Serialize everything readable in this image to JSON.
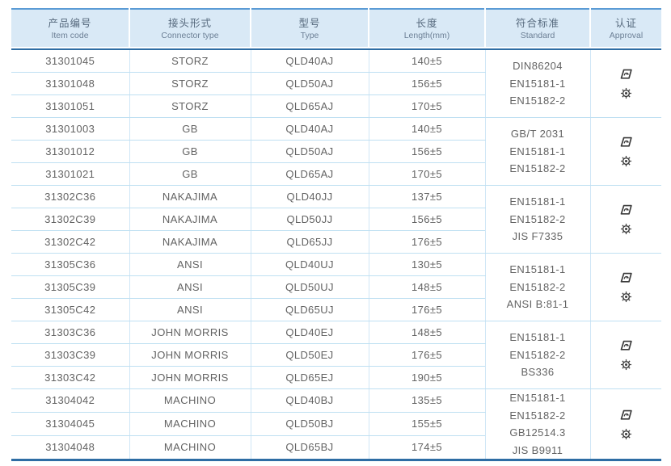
{
  "page": {
    "title": "Product specification table",
    "colors": {
      "header_bg": "#d9e9f6",
      "top_border": "#5b9bd5",
      "heavy_line": "#2e6da4",
      "grid_line": "#bfe0f2",
      "body_text": "#636363",
      "header_text": "#55687c",
      "icon_color": "#3c3c3c"
    }
  },
  "table": {
    "type": "table",
    "columns": [
      {
        "zh": "产品编号",
        "en": "Item code"
      },
      {
        "zh": "接头形式",
        "en": "Connector type"
      },
      {
        "zh": "型号",
        "en": "Type"
      },
      {
        "zh": "长度",
        "en": "Length(mm)"
      },
      {
        "zh": "符合标准",
        "en": "Standard"
      },
      {
        "zh": "认证",
        "en": "Approval"
      }
    ],
    "groups": [
      {
        "rows": [
          {
            "item_code": "31301045",
            "connector_type": "STORZ",
            "type": "QLD40AJ",
            "length": "140±5"
          },
          {
            "item_code": "31301048",
            "connector_type": "STORZ",
            "type": "QLD50AJ",
            "length": "156±5"
          },
          {
            "item_code": "31301051",
            "connector_type": "STORZ",
            "type": "QLD65AJ",
            "length": "170±5"
          }
        ],
        "standards": [
          "DIN86204",
          "EN15181-1",
          "EN15182-2"
        ],
        "approval_icons": [
          "cert-stamp-icon",
          "gear-seal-icon"
        ]
      },
      {
        "rows": [
          {
            "item_code": "31301003",
            "connector_type": "GB",
            "type": "QLD40AJ",
            "length": "140±5"
          },
          {
            "item_code": "31301012",
            "connector_type": "GB",
            "type": "QLD50AJ",
            "length": "156±5"
          },
          {
            "item_code": "31301021",
            "connector_type": "GB",
            "type": "QLD65AJ",
            "length": "170±5"
          }
        ],
        "standards": [
          "GB/T 2031",
          "EN15181-1",
          "EN15182-2"
        ],
        "approval_icons": [
          "cert-stamp-icon",
          "gear-seal-icon"
        ]
      },
      {
        "rows": [
          {
            "item_code": "31302C36",
            "connector_type": "NAKAJIMA",
            "type": "QLD40JJ",
            "length": "137±5"
          },
          {
            "item_code": "31302C39",
            "connector_type": "NAKAJIMA",
            "type": "QLD50JJ",
            "length": "156±5"
          },
          {
            "item_code": "31302C42",
            "connector_type": "NAKAJIMA",
            "type": "QLD65JJ",
            "length": "176±5"
          }
        ],
        "standards": [
          "EN15181-1",
          "EN15182-2",
          "JIS F7335"
        ],
        "approval_icons": [
          "cert-stamp-icon",
          "gear-seal-icon"
        ]
      },
      {
        "rows": [
          {
            "item_code": "31305C36",
            "connector_type": "ANSI",
            "type": "QLD40UJ",
            "length": "130±5"
          },
          {
            "item_code": "31305C39",
            "connector_type": "ANSI",
            "type": "QLD50UJ",
            "length": "148±5"
          },
          {
            "item_code": "31305C42",
            "connector_type": "ANSI",
            "type": "QLD65UJ",
            "length": "176±5"
          }
        ],
        "standards": [
          "EN15181-1",
          "EN15182-2",
          "ANSI B:81-1"
        ],
        "approval_icons": [
          "cert-stamp-icon",
          "gear-seal-icon"
        ]
      },
      {
        "rows": [
          {
            "item_code": "31303C36",
            "connector_type": "JOHN MORRIS",
            "type": "QLD40EJ",
            "length": "148±5"
          },
          {
            "item_code": "31303C39",
            "connector_type": "JOHN MORRIS",
            "type": "QLD50EJ",
            "length": "176±5"
          },
          {
            "item_code": "31303C42",
            "connector_type": "JOHN MORRIS",
            "type": "QLD65EJ",
            "length": "190±5"
          }
        ],
        "standards": [
          "EN15181-1",
          "EN15182-2",
          "BS336"
        ],
        "approval_icons": [
          "cert-stamp-icon",
          "gear-seal-icon"
        ]
      },
      {
        "rows": [
          {
            "item_code": "31304042",
            "connector_type": "MACHINO",
            "type": "QLD40BJ",
            "length": "135±5"
          },
          {
            "item_code": "31304045",
            "connector_type": "MACHINO",
            "type": "QLD50BJ",
            "length": "155±5"
          },
          {
            "item_code": "31304048",
            "connector_type": "MACHINO",
            "type": "QLD65BJ",
            "length": "174±5"
          }
        ],
        "standards": [
          "EN15181-1",
          "EN15182-2",
          "GB12514.3",
          "JIS B9911"
        ],
        "approval_icons": [
          "cert-stamp-icon",
          "gear-seal-icon"
        ]
      }
    ]
  }
}
